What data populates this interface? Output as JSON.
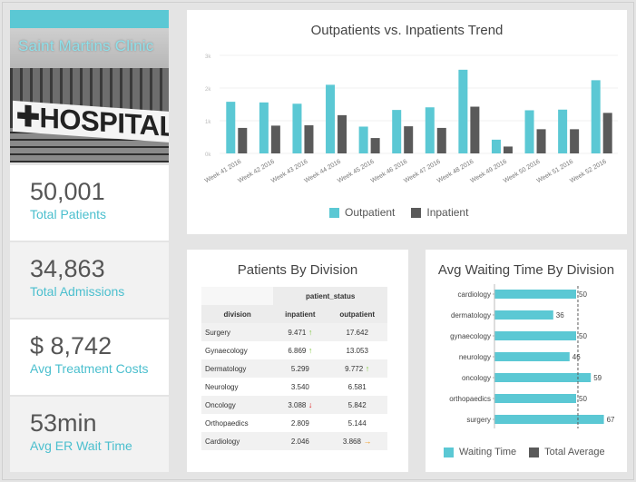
{
  "colors": {
    "accent": "#5bc8d4",
    "dark": "#5a5a5a",
    "label": "#4bbfce"
  },
  "hero": {
    "title": "Saint Martins Clinic",
    "sign": "✚HOSPITAL"
  },
  "kpis": [
    {
      "value": "50,001",
      "label": "Total Patients"
    },
    {
      "value": "34,863",
      "label": "Total Admissions"
    },
    {
      "value": "$ 8,742",
      "label": "Avg Treatment Costs"
    },
    {
      "value": "53min",
      "label": "Avg ER Wait Time"
    }
  ],
  "trend": {
    "title": "Outpatients vs. Inpatients Trend",
    "legend": {
      "outpatient": "Outpatient",
      "inpatient": "Inpatient"
    }
  },
  "division_table": {
    "title": "Patients By Division",
    "group_header": "patient_status",
    "columns": [
      "division",
      "inpatient",
      "outpatient"
    ],
    "rows": [
      {
        "division": "Surgery",
        "inpatient": "9.471",
        "in_arrow": "up",
        "outpatient": "17.642",
        "out_arrow": ""
      },
      {
        "division": "Gynaecology",
        "inpatient": "6.869",
        "in_arrow": "up",
        "outpatient": "13.053",
        "out_arrow": ""
      },
      {
        "division": "Dermatology",
        "inpatient": "5.299",
        "in_arrow": "",
        "outpatient": "9.772",
        "out_arrow": "up"
      },
      {
        "division": "Neurology",
        "inpatient": "3.540",
        "in_arrow": "",
        "outpatient": "6.581",
        "out_arrow": ""
      },
      {
        "division": "Oncology",
        "inpatient": "3.088",
        "in_arrow": "down",
        "outpatient": "5.842",
        "out_arrow": ""
      },
      {
        "division": "Orthopaedics",
        "inpatient": "2.809",
        "in_arrow": "",
        "outpatient": "5.144",
        "out_arrow": ""
      },
      {
        "division": "Cardiology",
        "inpatient": "2.046",
        "in_arrow": "",
        "outpatient": "3.868",
        "out_arrow": "right"
      }
    ]
  },
  "waiting": {
    "title": "Avg Waiting Time By Division",
    "legend": {
      "waiting": "Waiting Time",
      "average": "Total Average"
    }
  },
  "chart_data": [
    {
      "type": "bar",
      "title": "Outpatients vs. Inpatients Trend",
      "categories": [
        "Week 41 2016",
        "Week 42 2016",
        "Week 43 2016",
        "Week 44 2016",
        "Week 45 2016",
        "Week 46 2016",
        "Week 47 2016",
        "Week 48 2016",
        "Week 49 2016",
        "Week 50 2016",
        "Week 51 2016",
        "Week 52 2016"
      ],
      "yticks": [
        "0k",
        "1k",
        "2k",
        "3k"
      ],
      "ylim": [
        0,
        3000
      ],
      "series": [
        {
          "name": "Outpatient",
          "color": "#5bc8d4",
          "values": [
            1580,
            1560,
            1520,
            2100,
            820,
            1330,
            1410,
            2560,
            420,
            1320,
            1340,
            2240
          ]
        },
        {
          "name": "Inpatient",
          "color": "#5a5a5a",
          "values": [
            780,
            850,
            860,
            1170,
            470,
            830,
            780,
            1430,
            210,
            740,
            740,
            1240
          ]
        }
      ],
      "legend": "bottom"
    },
    {
      "type": "bar",
      "orientation": "horizontal",
      "title": "Avg Waiting Time By Division",
      "categories": [
        "cardiology",
        "dermatology",
        "gynaecology",
        "neurology",
        "oncology",
        "orthopaedics",
        "surgery"
      ],
      "series": [
        {
          "name": "Waiting Time",
          "color": "#5bc8d4",
          "values": [
            50,
            36,
            50,
            46,
            59,
            50,
            67
          ]
        }
      ],
      "reference_line": {
        "name": "Total Average",
        "value": 51.1,
        "color": "#5a5a5a"
      },
      "xlim": [
        0,
        70
      ],
      "legend": "bottom"
    }
  ]
}
